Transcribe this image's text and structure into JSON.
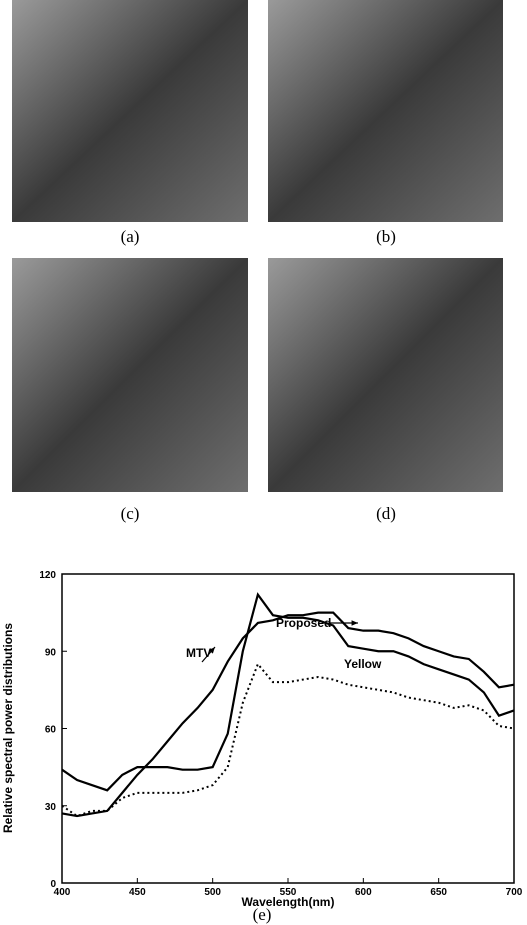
{
  "panels": [
    "(a)",
    "(b)",
    "(c)",
    "(d)"
  ],
  "chart_data": {
    "type": "line",
    "caption": "(e)",
    "x_label": "Wavelength(nm)",
    "y_label": "Relative spectral power distributions",
    "x": [
      400,
      410,
      420,
      430,
      440,
      450,
      460,
      470,
      480,
      490,
      500,
      510,
      520,
      530,
      540,
      550,
      560,
      570,
      580,
      590,
      600,
      610,
      620,
      630,
      640,
      650,
      660,
      670,
      680,
      690,
      700
    ],
    "series": [
      {
        "name": "MTV",
        "color": "#000000",
        "style": "solid",
        "values": [
          27,
          26,
          27,
          28,
          35,
          42,
          48,
          55,
          62,
          68,
          75,
          86,
          95,
          101,
          102,
          104,
          104,
          105,
          105,
          99,
          98,
          98,
          97,
          95,
          92,
          90,
          88,
          87,
          82,
          76,
          77
        ]
      },
      {
        "name": "Proposed",
        "color": "#000000",
        "style": "solid",
        "values": [
          44,
          40,
          38,
          36,
          42,
          45,
          45,
          45,
          44,
          44,
          45,
          58,
          90,
          112,
          104,
          103,
          103,
          102,
          100,
          92,
          91,
          90,
          90,
          88,
          85,
          83,
          81,
          79,
          74,
          65,
          67
        ]
      },
      {
        "name": "Yellow",
        "color": "#000000",
        "style": "dotted",
        "values": [
          30,
          26,
          28,
          28,
          33,
          35,
          35,
          35,
          35,
          36,
          38,
          45,
          70,
          85,
          78,
          78,
          79,
          80,
          79,
          77,
          76,
          75,
          74,
          72,
          71,
          70,
          68,
          69,
          67,
          61,
          60
        ]
      }
    ],
    "xlim": [
      400,
      700
    ],
    "xticks": [
      400,
      450,
      500,
      550,
      600,
      650,
      700
    ],
    "ylim": [
      0,
      120
    ],
    "yticks": [
      0,
      30,
      60,
      90,
      120
    ]
  }
}
